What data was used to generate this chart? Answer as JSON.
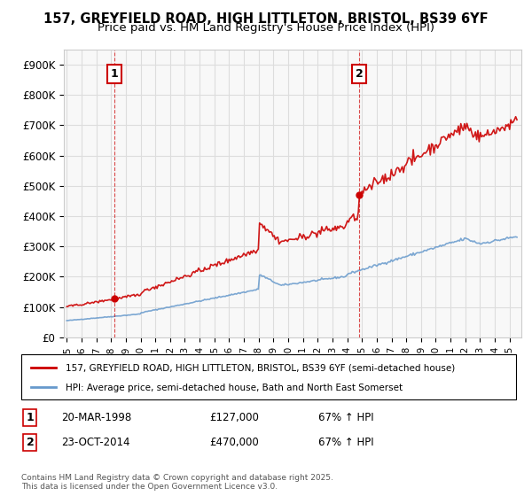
{
  "title_line1": "157, GREYFIELD ROAD, HIGH LITTLETON, BRISTOL, BS39 6YF",
  "title_line2": "Price paid vs. HM Land Registry's House Price Index (HPI)",
  "legend_line1": "157, GREYFIELD ROAD, HIGH LITTLETON, BRISTOL, BS39 6YF (semi-detached house)",
  "legend_line2": "HPI: Average price, semi-detached house, Bath and North East Somerset",
  "footer": "Contains HM Land Registry data © Crown copyright and database right 2025.\nThis data is licensed under the Open Government Licence v3.0.",
  "annotation1_date": "20-MAR-1998",
  "annotation1_price": "£127,000",
  "annotation1_hpi": "67% ↑ HPI",
  "annotation1_year": 1998.22,
  "annotation1_value": 127000,
  "annotation2_date": "23-OCT-2014",
  "annotation2_price": "£470,000",
  "annotation2_hpi": "67% ↑ HPI",
  "annotation2_year": 2014.81,
  "annotation2_value": 470000,
  "price_color": "#cc0000",
  "hpi_color": "#6699cc",
  "background_color": "#ffffff",
  "grid_color": "#dddddd",
  "ylim": [
    0,
    950000
  ],
  "xlim_start": 1994.8,
  "xlim_end": 2025.8
}
